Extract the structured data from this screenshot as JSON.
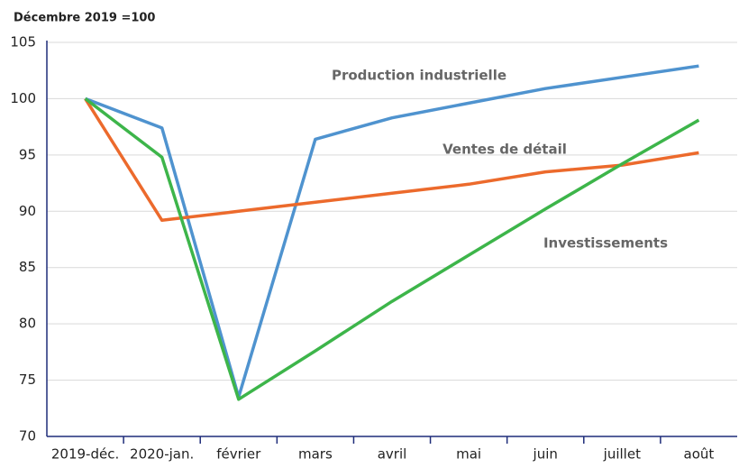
{
  "chart_data": {
    "type": "line",
    "subtitle": "Décembre 2019 =100",
    "categories": [
      "2019-déc.",
      "2020-jan.",
      "février",
      "mars",
      "avril",
      "mai",
      "juin",
      "juillet",
      "août"
    ],
    "series": [
      {
        "name": "Production industrielle",
        "color": "#4f93cf",
        "values": [
          100,
          97.4,
          73.5,
          96.4,
          98.3,
          99.6,
          100.9,
          101.9,
          102.9
        ]
      },
      {
        "name": "Ventes de détail",
        "color": "#ec6a2c",
        "values": [
          100,
          89.2,
          90.0,
          90.8,
          91.6,
          92.4,
          93.5,
          94.1,
          95.2
        ]
      },
      {
        "name": "Investissements",
        "color": "#3db54a",
        "values": [
          100,
          94.8,
          73.3,
          77.6,
          82.0,
          86.1,
          90.2,
          94.2,
          98.1
        ]
      }
    ],
    "ylim": [
      70,
      105
    ],
    "yticks": [
      70,
      75,
      80,
      85,
      90,
      95,
      100,
      105
    ],
    "grid": true
  }
}
